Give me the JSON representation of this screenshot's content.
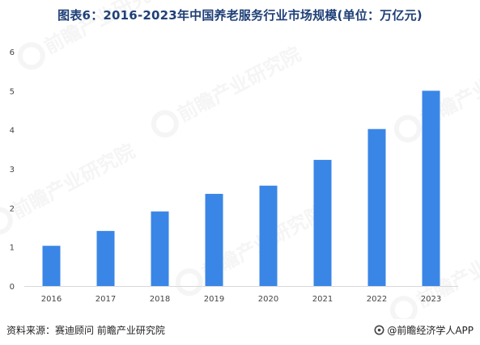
{
  "title": "图表6：2016-2023年中国养老服务行业市场规模(单位：万亿元)",
  "footer": {
    "source": "资料来源：赛迪顾问 前瞻产业研究院",
    "brand": "@前瞻经济学人APP"
  },
  "watermark": {
    "text": "前瞻产业研究院"
  },
  "colors": {
    "bar": "#3a86e6",
    "title": "#1f3f77",
    "axis": "#d9d9d9",
    "tick_text": "#444444"
  },
  "chart_data": {
    "type": "bar",
    "categories": [
      "2016",
      "2017",
      "2018",
      "2019",
      "2020",
      "2021",
      "2022",
      "2023"
    ],
    "values": [
      1.03,
      1.41,
      1.91,
      2.36,
      2.57,
      3.23,
      4.02,
      5.0
    ],
    "ylim": [
      0,
      6
    ],
    "yticks": [
      "0",
      "1",
      "2",
      "3",
      "4",
      "5",
      "6"
    ],
    "xlabel": "",
    "ylabel": "",
    "grid": false,
    "legend": "none"
  }
}
